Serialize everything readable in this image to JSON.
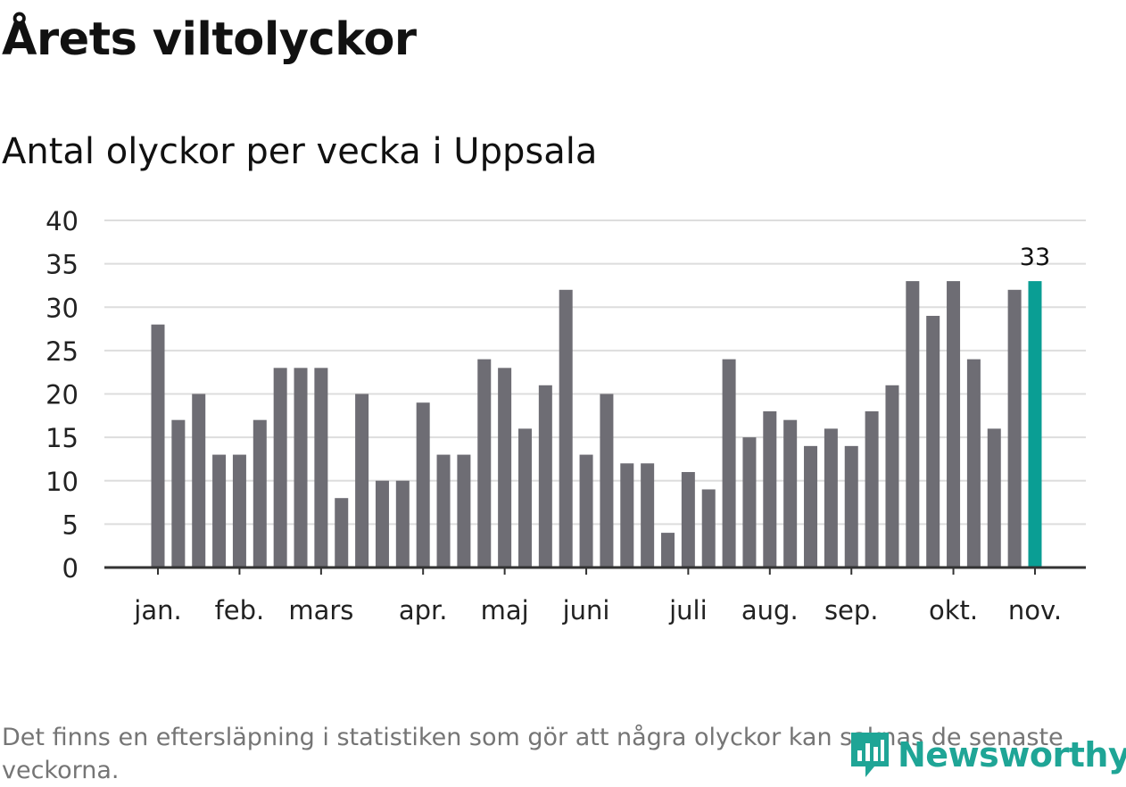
{
  "title": "Årets viltolyckor",
  "subtitle": "Antal olyckor per vecka i Uppsala",
  "footnote": "Det finns en eftersläpning i statistiken som gör att några olyckor kan saknas de senaste veckorna.",
  "logo": {
    "text": "Newsworthy",
    "icon": "newsworthy-logo-icon"
  },
  "colors": {
    "bar": "#6e6d74",
    "highlight": "#0a9e94",
    "grid": "#dddddd",
    "axis": "#333333",
    "logo": "#1fa596"
  },
  "chart_data": {
    "type": "bar",
    "title": "Årets viltolyckor",
    "subtitle": "Antal olyckor per vecka i Uppsala",
    "xlabel": "",
    "ylabel": "",
    "ylim": [
      0,
      40
    ],
    "yticks": [
      0,
      5,
      10,
      15,
      20,
      25,
      30,
      35,
      40
    ],
    "grid": true,
    "values": [
      28,
      17,
      20,
      13,
      13,
      17,
      23,
      23,
      23,
      8,
      20,
      10,
      10,
      19,
      13,
      13,
      24,
      23,
      16,
      21,
      32,
      13,
      20,
      12,
      12,
      4,
      11,
      9,
      24,
      15,
      18,
      17,
      14,
      16,
      14,
      18,
      21,
      33,
      29,
      33,
      24,
      16,
      32,
      33
    ],
    "highlight_index": 43,
    "data_labels": [
      {
        "index": 43,
        "text": "33"
      }
    ],
    "month_labels": [
      {
        "label": "jan.",
        "bar_index": 0
      },
      {
        "label": "feb.",
        "bar_index": 4
      },
      {
        "label": "mars",
        "bar_index": 8
      },
      {
        "label": "apr.",
        "bar_index": 13
      },
      {
        "label": "maj",
        "bar_index": 17
      },
      {
        "label": "juni",
        "bar_index": 21
      },
      {
        "label": "juli",
        "bar_index": 26
      },
      {
        "label": "aug.",
        "bar_index": 30
      },
      {
        "label": "sep.",
        "bar_index": 34
      },
      {
        "label": "okt.",
        "bar_index": 39
      },
      {
        "label": "nov.",
        "bar_index": 43
      }
    ]
  }
}
